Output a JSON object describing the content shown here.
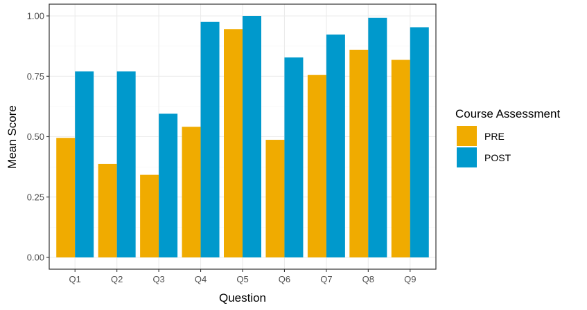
{
  "chart_data": {
    "type": "bar",
    "categories": [
      "Q1",
      "Q2",
      "Q3",
      "Q4",
      "Q5",
      "Q6",
      "Q7",
      "Q8",
      "Q9"
    ],
    "series": [
      {
        "name": "PRE",
        "color": "#F0AB00",
        "values": [
          0.495,
          0.387,
          0.342,
          0.541,
          0.945,
          0.487,
          0.756,
          0.86,
          0.818
        ]
      },
      {
        "name": "POST",
        "color": "#0099CC",
        "values": [
          0.77,
          0.77,
          0.595,
          0.975,
          1.0,
          0.828,
          0.923,
          0.992,
          0.953
        ]
      }
    ],
    "xlabel": "Question",
    "ylabel": "Mean Score",
    "ylim": [
      0,
      1.04
    ],
    "yticks": [
      0.0,
      0.25,
      0.5,
      0.75,
      1.0
    ],
    "ytick_labels": [
      "0.00",
      "0.25",
      "0.50",
      "0.75",
      "1.00"
    ],
    "grid": true,
    "legend": {
      "title": "Course Assessment",
      "position": "right"
    }
  }
}
